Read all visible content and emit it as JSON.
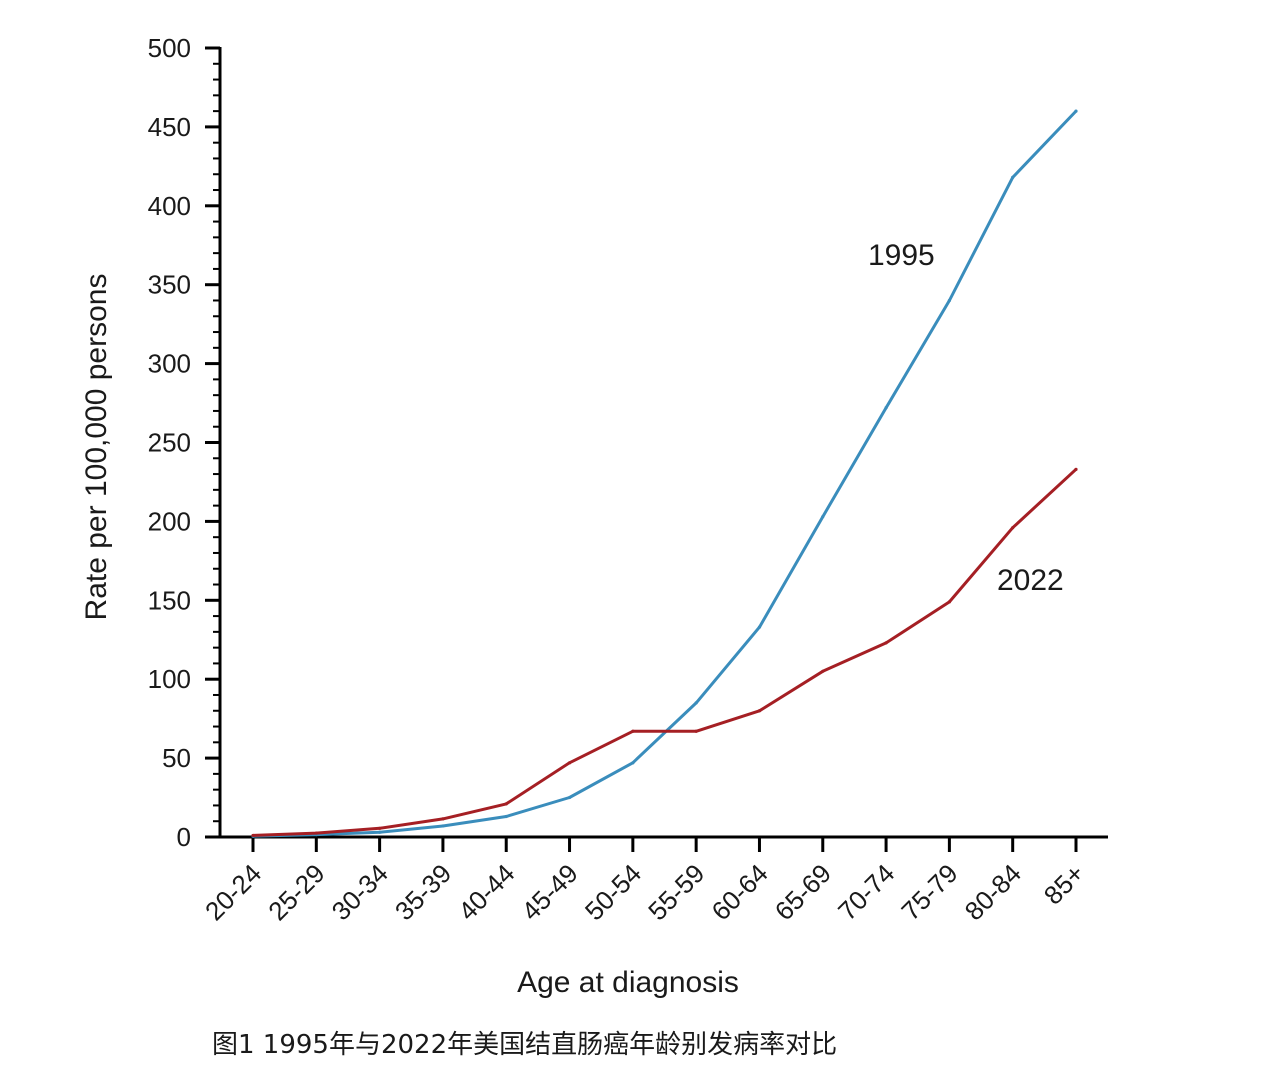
{
  "figure": {
    "caption": "图1 1995年与2022年美国结直肠癌年龄别发病率对比"
  },
  "colors": {
    "series_1995": "#3a8dbc",
    "series_2022": "#a51f24",
    "axis": "#000000",
    "text": "#1a1a1a"
  },
  "chart_data": {
    "type": "line",
    "title": "",
    "xlabel": "Age at diagnosis",
    "ylabel": "Rate per 100,000 persons",
    "ylim": [
      0,
      500
    ],
    "yticks": [
      0,
      50,
      100,
      150,
      200,
      250,
      300,
      350,
      400,
      450,
      500
    ],
    "y_minor_step": 10,
    "grid": false,
    "legend": "none (series labeled directly on lines)",
    "categories": [
      "20-24",
      "25-29",
      "30-34",
      "35-39",
      "40-44",
      "45-49",
      "50-54",
      "55-59",
      "60-64",
      "65-69",
      "70-74",
      "75-79",
      "80-84",
      "85+"
    ],
    "series": [
      {
        "name": "1995",
        "color": "#3a8dbc",
        "values": [
          0.5,
          1.5,
          3,
          7,
          13,
          25,
          47,
          85,
          133,
          203,
          272,
          340,
          418,
          460
        ]
      },
      {
        "name": "2022",
        "color": "#a51f24",
        "values": [
          1,
          2.5,
          5.5,
          11.5,
          21,
          47,
          67,
          67,
          80,
          105,
          123,
          149,
          196,
          233
        ]
      }
    ]
  }
}
